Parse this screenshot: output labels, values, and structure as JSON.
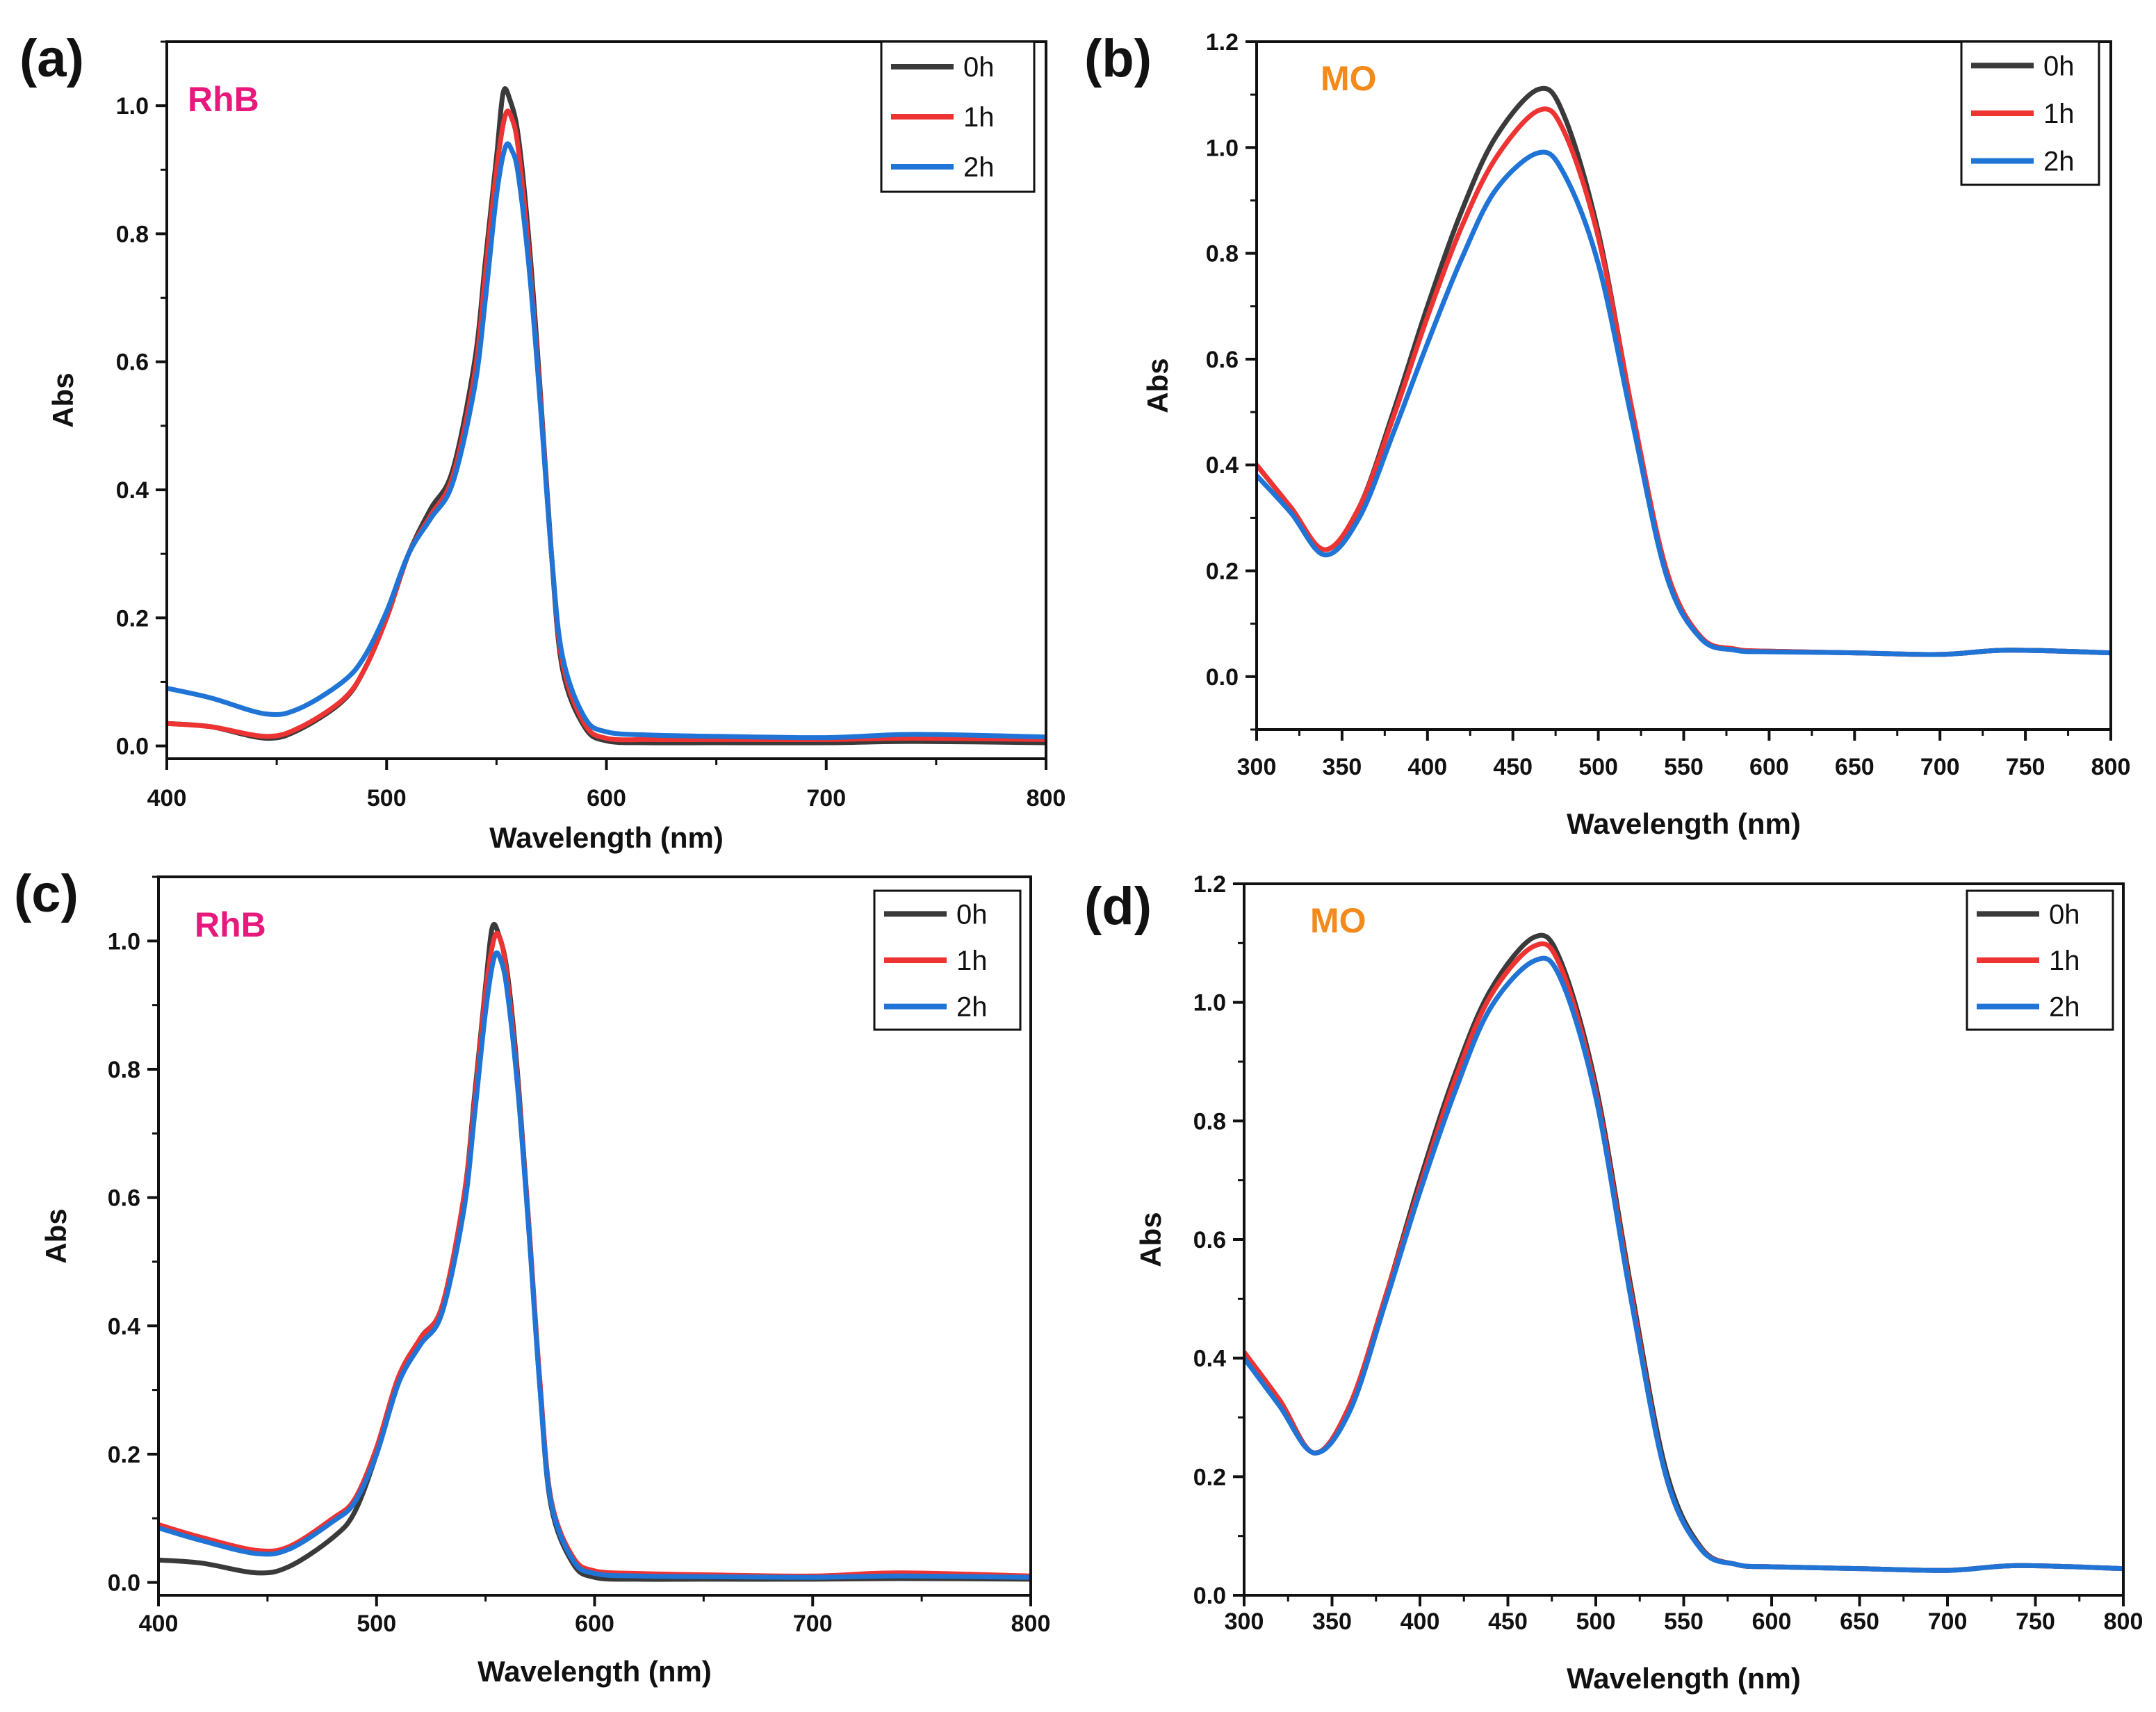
{
  "colors": {
    "0h": "#3a3a3a",
    "1h": "#ee3333",
    "2h": "#1f74d6",
    "rhb_label": "#e8197d",
    "mo_label": "#f28a1c"
  },
  "chart_data": [
    {
      "panel": "(a)",
      "type": "line",
      "label": "RhB",
      "label_color": "#e8197d",
      "xlabel": "Wavelength (nm)",
      "ylabel": "Abs",
      "xlim": [
        400,
        800
      ],
      "ylim": [
        -0.02,
        1.1
      ],
      "xticks": [
        400,
        500,
        600,
        700,
        800
      ],
      "yticks": [
        0.0,
        0.2,
        0.4,
        0.6,
        0.8,
        1.0
      ],
      "legend_position": "top-right",
      "series": [
        {
          "name": "0h",
          "color": "#3a3a3a",
          "x": [
            400,
            420,
            445,
            460,
            480,
            490,
            500,
            510,
            520,
            530,
            540,
            545,
            550,
            553,
            556,
            560,
            565,
            570,
            575,
            580,
            590,
            600,
            620,
            650,
            700,
            740,
            800
          ],
          "y": [
            0.035,
            0.03,
            0.012,
            0.025,
            0.07,
            0.12,
            0.2,
            0.3,
            0.37,
            0.43,
            0.6,
            0.76,
            0.92,
            1.02,
            1.01,
            0.95,
            0.78,
            0.55,
            0.3,
            0.12,
            0.03,
            0.008,
            0.005,
            0.005,
            0.005,
            0.007,
            0.005
          ]
        },
        {
          "name": "1h",
          "color": "#ee3333",
          "x": [
            400,
            420,
            445,
            460,
            480,
            490,
            500,
            510,
            520,
            530,
            540,
            545,
            550,
            554,
            557,
            560,
            565,
            570,
            575,
            580,
            590,
            600,
            620,
            650,
            700,
            740,
            800
          ],
          "y": [
            0.035,
            0.03,
            0.015,
            0.028,
            0.072,
            0.12,
            0.2,
            0.3,
            0.36,
            0.42,
            0.58,
            0.74,
            0.9,
            0.985,
            0.98,
            0.93,
            0.76,
            0.54,
            0.3,
            0.13,
            0.035,
            0.012,
            0.01,
            0.01,
            0.01,
            0.012,
            0.01
          ]
        },
        {
          "name": "2h",
          "color": "#1f74d6",
          "x": [
            400,
            420,
            445,
            460,
            480,
            490,
            500,
            510,
            520,
            530,
            540,
            545,
            550,
            554,
            557,
            560,
            565,
            570,
            575,
            580,
            590,
            600,
            620,
            650,
            700,
            740,
            800
          ],
          "y": [
            0.09,
            0.075,
            0.05,
            0.058,
            0.1,
            0.14,
            0.21,
            0.3,
            0.355,
            0.41,
            0.56,
            0.7,
            0.86,
            0.935,
            0.93,
            0.89,
            0.74,
            0.53,
            0.3,
            0.14,
            0.045,
            0.022,
            0.017,
            0.015,
            0.013,
            0.018,
            0.014
          ]
        }
      ]
    },
    {
      "panel": "(b)",
      "type": "line",
      "label": "MO",
      "label_color": "#f28a1c",
      "xlabel": "Wavelength (nm)",
      "ylabel": "Abs",
      "xlim": [
        300,
        800
      ],
      "ylim": [
        -0.1,
        1.2
      ],
      "xticks": [
        300,
        350,
        400,
        450,
        500,
        550,
        600,
        650,
        700,
        750,
        800
      ],
      "yticks": [
        0.0,
        0.2,
        0.4,
        0.6,
        0.8,
        1.0,
        1.2
      ],
      "legend_position": "top-right",
      "series": [
        {
          "name": "0h",
          "color": "#3a3a3a",
          "x": [
            300,
            320,
            340,
            360,
            380,
            400,
            420,
            440,
            465,
            480,
            500,
            520,
            540,
            560,
            580,
            600,
            650,
            700,
            740,
            800
          ],
          "y": [
            0.4,
            0.32,
            0.24,
            0.32,
            0.5,
            0.7,
            0.88,
            1.02,
            1.11,
            1.06,
            0.84,
            0.5,
            0.2,
            0.075,
            0.052,
            0.048,
            0.045,
            0.042,
            0.05,
            0.045
          ]
        },
        {
          "name": "1h",
          "color": "#ee3333",
          "x": [
            300,
            320,
            340,
            360,
            380,
            400,
            420,
            440,
            465,
            480,
            500,
            520,
            540,
            560,
            580,
            600,
            650,
            700,
            740,
            800
          ],
          "y": [
            0.4,
            0.32,
            0.24,
            0.32,
            0.49,
            0.68,
            0.85,
            0.98,
            1.07,
            1.03,
            0.83,
            0.5,
            0.2,
            0.075,
            0.052,
            0.048,
            0.045,
            0.042,
            0.05,
            0.045
          ]
        },
        {
          "name": "2h",
          "color": "#1f74d6",
          "x": [
            300,
            320,
            340,
            360,
            380,
            400,
            420,
            440,
            465,
            480,
            500,
            520,
            540,
            560,
            580,
            600,
            650,
            700,
            740,
            800
          ],
          "y": [
            0.38,
            0.31,
            0.23,
            0.3,
            0.46,
            0.63,
            0.79,
            0.92,
            0.99,
            0.95,
            0.78,
            0.48,
            0.19,
            0.072,
            0.05,
            0.047,
            0.045,
            0.042,
            0.05,
            0.045
          ]
        }
      ]
    },
    {
      "panel": "(c)",
      "type": "line",
      "label": "RhB",
      "label_color": "#e8197d",
      "xlabel": "Wavelength (nm)",
      "ylabel": "Abs",
      "xlim": [
        400,
        800
      ],
      "ylim": [
        -0.02,
        1.1
      ],
      "xticks": [
        400,
        500,
        600,
        700,
        800
      ],
      "yticks": [
        0.0,
        0.2,
        0.4,
        0.6,
        0.8,
        1.0
      ],
      "legend_position": "top-right",
      "series": [
        {
          "name": "0h",
          "color": "#3a3a3a",
          "x": [
            400,
            420,
            445,
            460,
            480,
            490,
            500,
            510,
            520,
            530,
            540,
            545,
            550,
            553,
            556,
            560,
            565,
            570,
            575,
            580,
            590,
            600,
            620,
            650,
            700,
            740,
            800
          ],
          "y": [
            0.035,
            0.03,
            0.015,
            0.025,
            0.07,
            0.11,
            0.2,
            0.31,
            0.38,
            0.43,
            0.6,
            0.76,
            0.93,
            1.02,
            1.01,
            0.95,
            0.78,
            0.55,
            0.3,
            0.12,
            0.03,
            0.008,
            0.005,
            0.005,
            0.005,
            0.006,
            0.005
          ]
        },
        {
          "name": "1h",
          "color": "#ee3333",
          "x": [
            400,
            420,
            445,
            460,
            480,
            490,
            500,
            510,
            520,
            530,
            540,
            545,
            550,
            554,
            557,
            560,
            565,
            570,
            575,
            580,
            590,
            600,
            620,
            650,
            700,
            740,
            800
          ],
          "y": [
            0.09,
            0.07,
            0.05,
            0.056,
            0.1,
            0.13,
            0.21,
            0.32,
            0.38,
            0.43,
            0.6,
            0.75,
            0.92,
            1.005,
            1.0,
            0.94,
            0.77,
            0.55,
            0.31,
            0.13,
            0.04,
            0.018,
            0.014,
            0.012,
            0.01,
            0.015,
            0.01
          ]
        },
        {
          "name": "2h",
          "color": "#1f74d6",
          "x": [
            400,
            420,
            445,
            460,
            480,
            490,
            500,
            510,
            520,
            530,
            540,
            545,
            550,
            554,
            557,
            560,
            565,
            570,
            575,
            580,
            590,
            600,
            620,
            650,
            700,
            740,
            800
          ],
          "y": [
            0.085,
            0.065,
            0.045,
            0.052,
            0.095,
            0.125,
            0.2,
            0.31,
            0.37,
            0.42,
            0.58,
            0.73,
            0.89,
            0.975,
            0.97,
            0.92,
            0.76,
            0.54,
            0.3,
            0.125,
            0.035,
            0.014,
            0.01,
            0.009,
            0.008,
            0.01,
            0.008
          ]
        }
      ]
    },
    {
      "panel": "(d)",
      "type": "line",
      "label": "MO",
      "label_color": "#f28a1c",
      "xlabel": "Wavelength (nm)",
      "ylabel": "Abs",
      "xlim": [
        300,
        800
      ],
      "ylim": [
        0.0,
        1.2
      ],
      "xticks": [
        300,
        350,
        400,
        450,
        500,
        550,
        600,
        650,
        700,
        750,
        800
      ],
      "yticks": [
        0.0,
        0.2,
        0.4,
        0.6,
        0.8,
        1.0,
        1.2
      ],
      "legend_position": "top-right",
      "series": [
        {
          "name": "0h",
          "color": "#3a3a3a",
          "x": [
            300,
            320,
            340,
            360,
            380,
            400,
            420,
            440,
            465,
            480,
            500,
            520,
            540,
            560,
            580,
            600,
            650,
            700,
            740,
            800
          ],
          "y": [
            0.4,
            0.33,
            0.24,
            0.32,
            0.5,
            0.7,
            0.88,
            1.02,
            1.11,
            1.07,
            0.86,
            0.52,
            0.21,
            0.08,
            0.052,
            0.048,
            0.045,
            0.042,
            0.05,
            0.045
          ]
        },
        {
          "name": "1h",
          "color": "#ee3333",
          "x": [
            300,
            320,
            340,
            360,
            380,
            400,
            420,
            440,
            465,
            480,
            500,
            520,
            540,
            560,
            580,
            600,
            650,
            700,
            740,
            800
          ],
          "y": [
            0.41,
            0.33,
            0.24,
            0.32,
            0.5,
            0.69,
            0.87,
            1.01,
            1.095,
            1.06,
            0.85,
            0.51,
            0.2,
            0.078,
            0.052,
            0.048,
            0.045,
            0.042,
            0.05,
            0.045
          ]
        },
        {
          "name": "2h",
          "color": "#1f74d6",
          "x": [
            300,
            320,
            340,
            360,
            380,
            400,
            420,
            440,
            465,
            480,
            500,
            520,
            540,
            560,
            580,
            600,
            650,
            700,
            740,
            800
          ],
          "y": [
            0.4,
            0.32,
            0.24,
            0.31,
            0.49,
            0.68,
            0.85,
            0.99,
            1.07,
            1.04,
            0.84,
            0.5,
            0.2,
            0.077,
            0.052,
            0.048,
            0.045,
            0.042,
            0.05,
            0.045
          ]
        }
      ]
    }
  ]
}
